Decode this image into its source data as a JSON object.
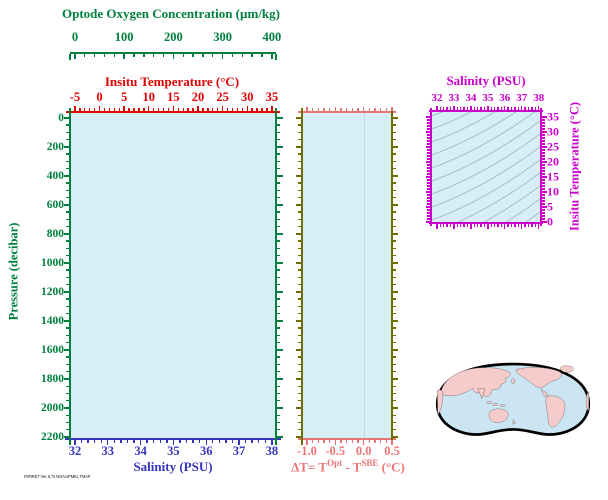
{
  "colors": {
    "green": "#00803C",
    "red": "#E10000",
    "blue": "#3434BE",
    "salmon": "#EC7474",
    "olive": "#6E6E00",
    "magenta": "#CB00CB",
    "panel_fill": "#D8EEF6",
    "contour": "#9EB9C8",
    "zero_line": "#C2D8E2",
    "map_ocean": "#CBE5F2",
    "map_land": "#F6CBCB",
    "map_land_stroke": "#555555",
    "map_outline": "#000000"
  },
  "axes": {
    "oxygen": {
      "title": "Optode Oxygen Concentration (µm/kg)",
      "ticks": [
        "0",
        "100",
        "200",
        "300",
        "400"
      ]
    },
    "temperature_top": {
      "title": "Insitu Temperature (°C)",
      "ticks": [
        "-5",
        "0",
        "5",
        "10",
        "15",
        "20",
        "25",
        "30",
        "35"
      ]
    },
    "pressure": {
      "title": "Pressure (decibar)",
      "ticks": [
        "0",
        "200",
        "400",
        "600",
        "800",
        "1000",
        "1200",
        "1400",
        "1600",
        "1800",
        "2000",
        "2200"
      ]
    },
    "salinity_bottom": {
      "title": "Salinity (PSU)",
      "ticks": [
        "32",
        "33",
        "34",
        "35",
        "36",
        "37",
        "38"
      ]
    },
    "delta_t": {
      "title_parts": {
        "prefix": "ΔT= T",
        "sup1": "Opt",
        "mid": " - T",
        "sup2": "SBE",
        "suffix": " (°C)"
      },
      "ticks": [
        "-1.0",
        "-0.5",
        "0.0",
        "0.5"
      ]
    },
    "ts_salinity": {
      "title": "Salinity (PSU)",
      "ticks": [
        "32",
        "33",
        "34",
        "35",
        "36",
        "37",
        "38"
      ]
    },
    "ts_temperature": {
      "title": "Insitu Temperature (°C)",
      "ticks": [
        "35",
        "30",
        "25",
        "20",
        "15",
        "10",
        "5",
        "0"
      ]
    }
  },
  "footer": {
    "text": "FERRET Ver. 6.72 NOAA/PMEL TMAP"
  },
  "chart_data": [
    {
      "type": "line",
      "panel": "main-profile",
      "xlabel": "Salinity (PSU)",
      "xlim": [
        32,
        38
      ],
      "ylabel": "Pressure (decibar)",
      "ylim": [
        2200,
        0
      ],
      "x2label": "Insitu Temperature (°C)",
      "x2lim": [
        -5,
        35
      ],
      "x3label": "Optode Oxygen Concentration (µm/kg)",
      "x3lim": [
        0,
        400
      ],
      "series": [],
      "note": "empty profile axes, light blue plot background, no data plotted"
    },
    {
      "type": "line",
      "panel": "delta-t-profile",
      "xlabel": "ΔT= T^Opt - T^SBE (°C)",
      "xlim": [
        -1.1,
        0.5
      ],
      "ylabel": "Pressure (decibar)",
      "ylim": [
        2200,
        0
      ],
      "series": [],
      "note": "empty panel with faint vertical reference line at 0.0"
    },
    {
      "type": "line",
      "panel": "ts-diagram",
      "xlabel": "Salinity (PSU)",
      "xlim": [
        32,
        38
      ],
      "ylabel": "Insitu Temperature (°C)",
      "ylim": [
        0,
        35
      ],
      "series": [],
      "note": "background family of ~18 curved density (isopycnal) contour lines sloping up to the right, no data plotted"
    },
    {
      "type": "map",
      "panel": "location-map",
      "note": "Pacific-centered oval world-map projection, pink land, light blue ocean, thick black outline, no station marker visible"
    }
  ]
}
